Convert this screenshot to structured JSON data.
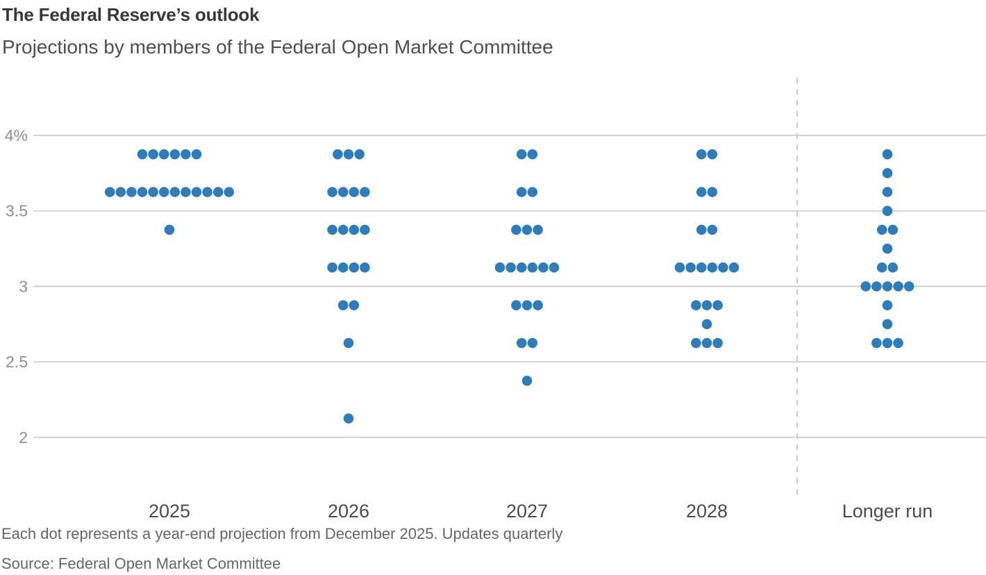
{
  "footer": {
    "note": "Each dot represents a year-end projection from December 2025. Updates quarterly",
    "source": "Source: Federal Open Market Committee"
  },
  "colors": {
    "dot": "#2e7cb9",
    "gridline": "#d2d2d2",
    "separator": "#c9c9c9",
    "title_text": "#383838",
    "subtitle_text": "#4f4f4f",
    "tick_label": "#8f8f8f",
    "category_label": "#4c4c4c",
    "footnote_text": "#666666",
    "background": "#ffffff"
  },
  "chart_data": {
    "type": "scatter",
    "variant": "fomc-dot-plot",
    "title": "The Federal Reserve’s outlook",
    "subtitle": "Projections by members of the Federal Open Market Committee",
    "xlabel": "",
    "ylabel": "",
    "unit": "percent",
    "grid": true,
    "legend_position": "none",
    "ylim": [
      1.6,
      4.4
    ],
    "y_ticks": [
      {
        "value": 4.0,
        "label": "4%"
      },
      {
        "value": 3.5,
        "label": "3.5"
      },
      {
        "value": 3.0,
        "label": "3"
      },
      {
        "value": 2.5,
        "label": "2.5"
      },
      {
        "value": 2.0,
        "label": "2"
      }
    ],
    "categories": [
      "2025",
      "2026",
      "2027",
      "2028",
      "Longer run"
    ],
    "separator_after_category": "2028",
    "series": [
      {
        "category": "2025",
        "projections": [
          {
            "rate": 3.875,
            "members": 6
          },
          {
            "rate": 3.625,
            "members": 12
          },
          {
            "rate": 3.375,
            "members": 1
          }
        ]
      },
      {
        "category": "2026",
        "projections": [
          {
            "rate": 3.875,
            "members": 3
          },
          {
            "rate": 3.625,
            "members": 4
          },
          {
            "rate": 3.375,
            "members": 4
          },
          {
            "rate": 3.125,
            "members": 4
          },
          {
            "rate": 2.875,
            "members": 2
          },
          {
            "rate": 2.625,
            "members": 1
          },
          {
            "rate": 2.125,
            "members": 1
          }
        ]
      },
      {
        "category": "2027",
        "projections": [
          {
            "rate": 3.875,
            "members": 2
          },
          {
            "rate": 3.625,
            "members": 2
          },
          {
            "rate": 3.375,
            "members": 3
          },
          {
            "rate": 3.125,
            "members": 6
          },
          {
            "rate": 2.875,
            "members": 3
          },
          {
            "rate": 2.625,
            "members": 2
          },
          {
            "rate": 2.375,
            "members": 1
          }
        ]
      },
      {
        "category": "2028",
        "projections": [
          {
            "rate": 3.875,
            "members": 2
          },
          {
            "rate": 3.625,
            "members": 2
          },
          {
            "rate": 3.375,
            "members": 2
          },
          {
            "rate": 3.125,
            "members": 6
          },
          {
            "rate": 2.875,
            "members": 3
          },
          {
            "rate": 2.75,
            "members": 1
          },
          {
            "rate": 2.625,
            "members": 3
          }
        ]
      },
      {
        "category": "Longer run",
        "projections": [
          {
            "rate": 3.875,
            "members": 1
          },
          {
            "rate": 3.75,
            "members": 1
          },
          {
            "rate": 3.625,
            "members": 1
          },
          {
            "rate": 3.5,
            "members": 1
          },
          {
            "rate": 3.375,
            "members": 2
          },
          {
            "rate": 3.25,
            "members": 1
          },
          {
            "rate": 3.125,
            "members": 2
          },
          {
            "rate": 3.0,
            "members": 5
          },
          {
            "rate": 2.875,
            "members": 1
          },
          {
            "rate": 2.75,
            "members": 1
          },
          {
            "rate": 2.625,
            "members": 3
          }
        ]
      }
    ]
  }
}
